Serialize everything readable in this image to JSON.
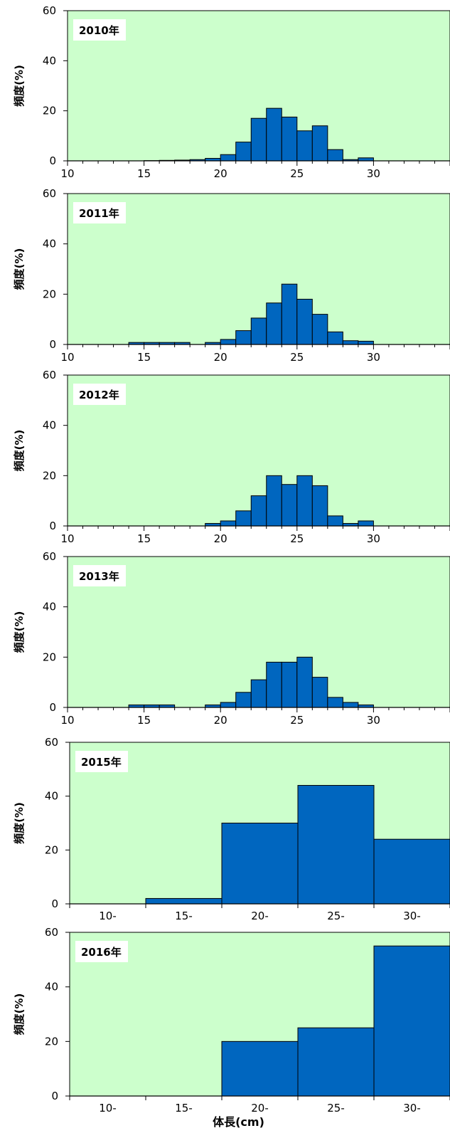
{
  "xlabel": "体長(cm)",
  "colors": {
    "plot_bg": "#ccffcc",
    "bar": "#0066bf",
    "bar_edge": "#000000"
  },
  "chart_data": [
    {
      "type": "bar",
      "title": "2010年",
      "ylabel": "頻度(%)",
      "ylim": [
        0,
        60
      ],
      "yticks": [
        0,
        20,
        40,
        60
      ],
      "bin_start": 10,
      "bin_width": 1,
      "x_range": [
        10,
        35
      ],
      "xticks": [
        "10",
        "15",
        "20",
        "25",
        "30"
      ],
      "values": [
        0,
        0,
        0,
        0,
        0,
        0.1,
        0.2,
        0.3,
        0.5,
        1,
        2.5,
        7.5,
        17,
        21,
        17.5,
        12,
        14,
        4.5,
        0.5,
        1.2,
        0,
        0,
        0,
        0,
        0
      ]
    },
    {
      "type": "bar",
      "title": "2011年",
      "ylabel": "頻度(%)",
      "ylim": [
        0,
        60
      ],
      "yticks": [
        0,
        20,
        40,
        60
      ],
      "bin_start": 10,
      "bin_width": 1,
      "x_range": [
        10,
        35
      ],
      "xticks": [
        "10",
        "15",
        "20",
        "25",
        "30"
      ],
      "values": [
        0,
        0,
        0,
        0,
        0.8,
        0.8,
        0.8,
        0.8,
        0,
        0.8,
        2,
        5.5,
        10.5,
        16.5,
        24,
        18,
        12,
        5,
        1.5,
        1.3,
        0,
        0,
        0,
        0,
        0
      ]
    },
    {
      "type": "bar",
      "title": "2012年",
      "ylabel": "頻度(%)",
      "ylim": [
        0,
        60
      ],
      "yticks": [
        0,
        20,
        40,
        60
      ],
      "bin_start": 10,
      "bin_width": 1,
      "x_range": [
        10,
        35
      ],
      "xticks": [
        "10",
        "15",
        "20",
        "25",
        "30"
      ],
      "values": [
        0,
        0,
        0,
        0,
        0,
        0,
        0,
        0,
        0,
        1,
        2,
        6,
        12,
        20,
        16.5,
        20,
        16,
        4,
        1,
        2,
        0,
        0,
        0,
        0,
        0
      ]
    },
    {
      "type": "bar",
      "title": "2013年",
      "ylabel": "頻度(%)",
      "ylim": [
        0,
        60
      ],
      "yticks": [
        0,
        20,
        40,
        60
      ],
      "bin_start": 10,
      "bin_width": 1,
      "x_range": [
        10,
        35
      ],
      "xticks": [
        "10",
        "15",
        "20",
        "25",
        "30"
      ],
      "values": [
        0,
        0,
        0,
        0,
        1,
        1,
        1,
        0,
        0,
        1,
        2,
        6,
        11,
        18,
        18,
        20,
        12,
        4,
        2,
        1,
        0,
        0,
        0,
        0,
        0
      ]
    },
    {
      "type": "bar",
      "title": "2015年",
      "ylabel": "頻度(%)",
      "ylim": [
        0,
        60
      ],
      "yticks": [
        0,
        20,
        40,
        60
      ],
      "categories": [
        "10-",
        "15-",
        "20-",
        "25-",
        "30-"
      ],
      "values": [
        0,
        2,
        30,
        44,
        24
      ]
    },
    {
      "type": "bar",
      "title": "2016年",
      "ylabel": "頻度(%)",
      "ylim": [
        0,
        60
      ],
      "yticks": [
        0,
        20,
        40,
        60
      ],
      "categories": [
        "10-",
        "15-",
        "20-",
        "25-",
        "30-"
      ],
      "values": [
        0,
        0,
        20,
        25,
        55
      ]
    }
  ]
}
